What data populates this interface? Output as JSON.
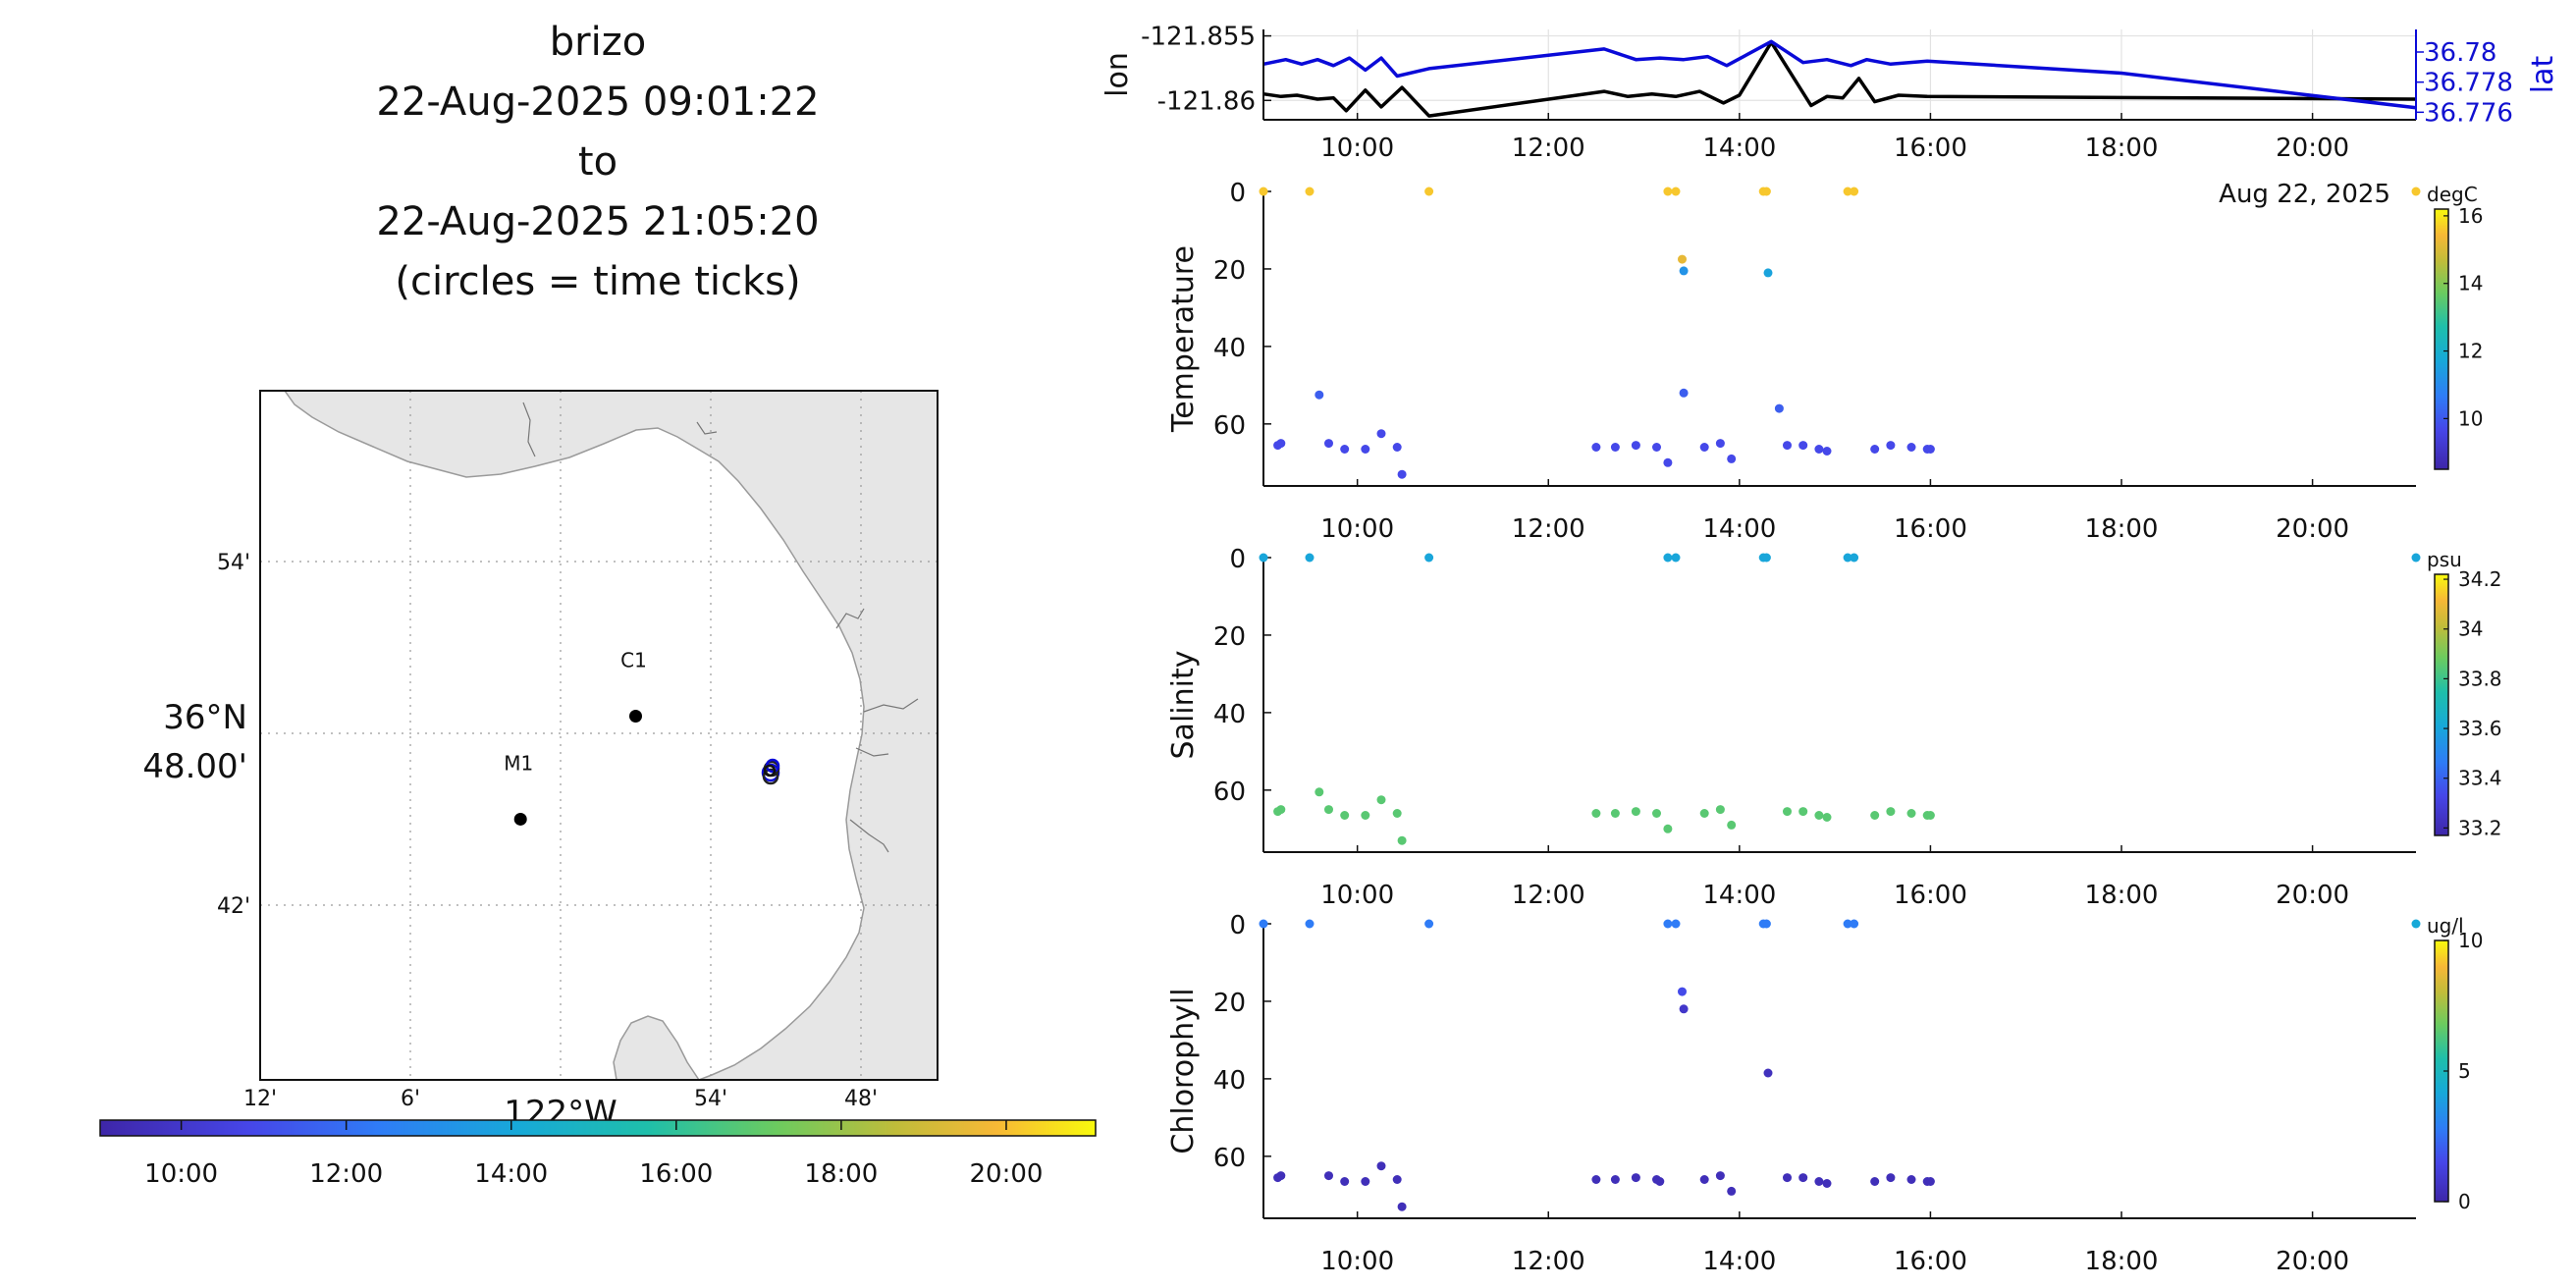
{
  "title": {
    "lines": [
      "brizo",
      "22-Aug-2025 09:01:22",
      "to",
      "22-Aug-2025 21:05:20",
      "(circles = time ticks)"
    ]
  },
  "colors": {
    "lon_line": "#000000",
    "lat_line": "#0a0ad8",
    "land": "#e6e6e6",
    "coast": "#9a9a9a"
  },
  "map": {
    "x_tick_labels": [
      "12'",
      "6'",
      "54'",
      "48'"
    ],
    "x_center_label": "122°W",
    "y_tick_labels": [
      "54'",
      "42'"
    ],
    "y_center_label_top": "36°N",
    "y_center_label_bottom": "48.00'",
    "stations": [
      {
        "name": "M1",
        "lon_min": 1.6,
        "lat_min": 45.0
      },
      {
        "name": "C1",
        "lon_min": 57.0,
        "lat_min": 48.6
      }
    ],
    "track_label": "circles = time ticks"
  },
  "time_colorbar": {
    "tick_labels": [
      "10:00",
      "12:00",
      "14:00",
      "16:00",
      "18:00",
      "20:00"
    ]
  },
  "chart_data": [
    {
      "type": "line",
      "name": "position",
      "xlabel": "",
      "ylabel": "lon",
      "y2label": "lat",
      "x_tick_labels": [
        "10:00",
        "12:00",
        "14:00",
        "16:00",
        "18:00",
        "20:00"
      ],
      "date_label": "Aug 22, 2025",
      "ylim": [
        -121.8615,
        -121.8545
      ],
      "y_ticks": [
        "-121.855",
        "-121.86"
      ],
      "y2lim": [
        36.7755,
        36.7815
      ],
      "y2_ticks": [
        "36.78",
        "36.778",
        "36.776"
      ],
      "grid": true,
      "series": [
        {
          "name": "lon",
          "axis": "left",
          "color": "#000000",
          "x": [
            "09:01",
            "09:12",
            "09:22",
            "09:35",
            "09:45",
            "09:53",
            "10:05",
            "10:15",
            "10:28",
            "10:45",
            "12:35",
            "12:50",
            "13:05",
            "13:20",
            "13:35",
            "13:50",
            "14:00",
            "14:20",
            "14:45",
            "14:55",
            "15:05",
            "15:15",
            "15:25",
            "15:40",
            "15:58",
            "21:05"
          ],
          "y": [
            -121.8595,
            -121.8597,
            -121.8596,
            -121.8599,
            -121.8598,
            -121.8608,
            -121.8592,
            -121.8605,
            -121.859,
            -121.8612,
            -121.8593,
            -121.8597,
            -121.8595,
            -121.8597,
            -121.8593,
            -121.8602,
            -121.8596,
            -121.8555,
            -121.8604,
            -121.8597,
            -121.8598,
            -121.8583,
            -121.8601,
            -121.8596,
            -121.8597,
            -121.8599
          ]
        },
        {
          "name": "lat",
          "axis": "right",
          "color": "#0a0ad8",
          "x": [
            "09:01",
            "09:15",
            "09:25",
            "09:35",
            "09:45",
            "09:55",
            "10:05",
            "10:15",
            "10:25",
            "10:45",
            "12:35",
            "12:55",
            "13:10",
            "13:25",
            "13:40",
            "13:52",
            "14:20",
            "14:40",
            "14:55",
            "15:10",
            "15:20",
            "15:35",
            "15:58",
            "18:00",
            "21:05"
          ],
          "y": [
            36.7792,
            36.7795,
            36.7792,
            36.7795,
            36.7791,
            36.7796,
            36.7788,
            36.7796,
            36.7784,
            36.7789,
            36.7802,
            36.7795,
            36.7796,
            36.7795,
            36.7797,
            36.7791,
            36.7807,
            36.7793,
            36.7795,
            36.7791,
            36.7795,
            36.7792,
            36.7794,
            36.7786,
            36.7763
          ]
        }
      ]
    },
    {
      "type": "scatter",
      "name": "temperature",
      "ylabel": "Temperature",
      "units": "degC",
      "x_tick_labels": [
        "10:00",
        "12:00",
        "14:00",
        "16:00",
        "18:00",
        "20:00"
      ],
      "y_ticks": [
        "0",
        "20",
        "40",
        "60"
      ],
      "ylim": [
        0,
        76
      ],
      "y_reversed": true,
      "colorbar": {
        "range": [
          8.5,
          16.2
        ],
        "ticks": [
          "16",
          "14",
          "12",
          "10"
        ]
      },
      "points": [
        {
          "t": "09:01",
          "d": 0,
          "v": 15.6
        },
        {
          "t": "09:30",
          "d": 0,
          "v": 15.6
        },
        {
          "t": "10:45",
          "d": 0,
          "v": 15.6
        },
        {
          "t": "13:15",
          "d": 0,
          "v": 15.6
        },
        {
          "t": "13:20",
          "d": 0,
          "v": 15.6
        },
        {
          "t": "14:15",
          "d": 0,
          "v": 15.6
        },
        {
          "t": "14:17",
          "d": 0,
          "v": 15.6
        },
        {
          "t": "15:08",
          "d": 0,
          "v": 15.6
        },
        {
          "t": "15:12",
          "d": 0,
          "v": 15.6
        },
        {
          "t": "21:05",
          "d": 0,
          "v": 15.6
        },
        {
          "t": "13:24",
          "d": 17.5,
          "v": 15.2
        },
        {
          "t": "13:25",
          "d": 20.5,
          "v": 11.2
        },
        {
          "t": "14:18",
          "d": 21,
          "v": 11.6
        },
        {
          "t": "09:36",
          "d": 52.5,
          "v": 10.1
        },
        {
          "t": "13:25",
          "d": 52,
          "v": 10.1
        },
        {
          "t": "14:25",
          "d": 56,
          "v": 10.1
        },
        {
          "t": "09:10",
          "d": 65.5,
          "v": 9.7
        },
        {
          "t": "09:12",
          "d": 65,
          "v": 9.7
        },
        {
          "t": "09:42",
          "d": 65,
          "v": 9.7
        },
        {
          "t": "09:52",
          "d": 66.5,
          "v": 9.7
        },
        {
          "t": "10:05",
          "d": 66.5,
          "v": 9.7
        },
        {
          "t": "10:15",
          "d": 62.5,
          "v": 9.7
        },
        {
          "t": "10:25",
          "d": 66,
          "v": 9.7
        },
        {
          "t": "10:28",
          "d": 73,
          "v": 9.7
        },
        {
          "t": "12:30",
          "d": 66,
          "v": 9.7
        },
        {
          "t": "12:42",
          "d": 66,
          "v": 9.7
        },
        {
          "t": "12:55",
          "d": 65.5,
          "v": 9.7
        },
        {
          "t": "13:08",
          "d": 66,
          "v": 9.7
        },
        {
          "t": "13:15",
          "d": 70,
          "v": 9.7
        },
        {
          "t": "13:38",
          "d": 66,
          "v": 9.7
        },
        {
          "t": "13:48",
          "d": 65,
          "v": 9.7
        },
        {
          "t": "13:55",
          "d": 69,
          "v": 9.7
        },
        {
          "t": "14:30",
          "d": 65.5,
          "v": 9.7
        },
        {
          "t": "14:40",
          "d": 65.5,
          "v": 9.7
        },
        {
          "t": "14:50",
          "d": 66.5,
          "v": 9.7
        },
        {
          "t": "14:55",
          "d": 67,
          "v": 9.7
        },
        {
          "t": "15:25",
          "d": 66.5,
          "v": 9.7
        },
        {
          "t": "15:35",
          "d": 65.5,
          "v": 9.7
        },
        {
          "t": "15:48",
          "d": 66,
          "v": 9.7
        },
        {
          "t": "15:58",
          "d": 66.5,
          "v": 9.7
        },
        {
          "t": "16:00",
          "d": 66.5,
          "v": 9.7
        }
      ]
    },
    {
      "type": "scatter",
      "name": "salinity",
      "ylabel": "Salinity",
      "units": "psu",
      "x_tick_labels": [
        "10:00",
        "12:00",
        "14:00",
        "16:00",
        "18:00",
        "20:00"
      ],
      "y_ticks": [
        "0",
        "20",
        "40",
        "60"
      ],
      "ylim": [
        0,
        76
      ],
      "y_reversed": true,
      "colorbar": {
        "range": [
          33.17,
          34.22
        ],
        "ticks": [
          "34.2",
          "34",
          "33.8",
          "33.6",
          "33.4",
          "33.2"
        ]
      },
      "points": [
        {
          "t": "09:01",
          "d": 0,
          "v": 33.6
        },
        {
          "t": "09:30",
          "d": 0,
          "v": 33.6
        },
        {
          "t": "10:45",
          "d": 0,
          "v": 33.6
        },
        {
          "t": "13:15",
          "d": 0,
          "v": 33.6
        },
        {
          "t": "13:20",
          "d": 0,
          "v": 33.6
        },
        {
          "t": "14:15",
          "d": 0,
          "v": 33.6
        },
        {
          "t": "14:17",
          "d": 0,
          "v": 33.6
        },
        {
          "t": "15:08",
          "d": 0,
          "v": 33.6
        },
        {
          "t": "15:12",
          "d": 0,
          "v": 33.6
        },
        {
          "t": "21:05",
          "d": 0,
          "v": 33.6
        },
        {
          "t": "09:10",
          "d": 65.5,
          "v": 33.85
        },
        {
          "t": "09:12",
          "d": 65,
          "v": 33.85
        },
        {
          "t": "09:36",
          "d": 60.5,
          "v": 33.85
        },
        {
          "t": "09:42",
          "d": 65,
          "v": 33.85
        },
        {
          "t": "09:52",
          "d": 66.5,
          "v": 33.85
        },
        {
          "t": "10:05",
          "d": 66.5,
          "v": 33.85
        },
        {
          "t": "10:15",
          "d": 62.5,
          "v": 33.85
        },
        {
          "t": "10:25",
          "d": 66,
          "v": 33.85
        },
        {
          "t": "10:28",
          "d": 73,
          "v": 33.85
        },
        {
          "t": "12:30",
          "d": 66,
          "v": 33.85
        },
        {
          "t": "12:42",
          "d": 66,
          "v": 33.85
        },
        {
          "t": "12:55",
          "d": 65.5,
          "v": 33.85
        },
        {
          "t": "13:08",
          "d": 66,
          "v": 33.85
        },
        {
          "t": "13:15",
          "d": 70,
          "v": 33.85
        },
        {
          "t": "13:38",
          "d": 66,
          "v": 33.85
        },
        {
          "t": "13:48",
          "d": 65,
          "v": 33.85
        },
        {
          "t": "13:55",
          "d": 69,
          "v": 33.85
        },
        {
          "t": "14:30",
          "d": 65.5,
          "v": 33.85
        },
        {
          "t": "14:40",
          "d": 65.5,
          "v": 33.85
        },
        {
          "t": "14:50",
          "d": 66.5,
          "v": 33.85
        },
        {
          "t": "14:55",
          "d": 67,
          "v": 33.85
        },
        {
          "t": "15:25",
          "d": 66.5,
          "v": 33.85
        },
        {
          "t": "15:35",
          "d": 65.5,
          "v": 33.85
        },
        {
          "t": "15:48",
          "d": 66,
          "v": 33.85
        },
        {
          "t": "15:58",
          "d": 66.5,
          "v": 33.85
        },
        {
          "t": "16:00",
          "d": 66.5,
          "v": 33.85
        }
      ]
    },
    {
      "type": "scatter",
      "name": "chlorophyll",
      "ylabel": "Chlorophyll",
      "units": "ug/l",
      "x_tick_labels": [
        "10:00",
        "12:00",
        "14:00",
        "16:00",
        "18:00",
        "20:00"
      ],
      "y_ticks": [
        "0",
        "20",
        "40",
        "60"
      ],
      "ylim": [
        0,
        76
      ],
      "y_reversed": true,
      "colorbar": {
        "range": [
          0,
          10
        ],
        "ticks": [
          "10",
          "5",
          "0"
        ]
      },
      "points": [
        {
          "t": "09:01",
          "d": 0,
          "v": 2.8
        },
        {
          "t": "09:30",
          "d": 0,
          "v": 2.8
        },
        {
          "t": "10:45",
          "d": 0,
          "v": 2.8
        },
        {
          "t": "13:15",
          "d": 0,
          "v": 2.8
        },
        {
          "t": "13:20",
          "d": 0,
          "v": 2.8
        },
        {
          "t": "14:15",
          "d": 0,
          "v": 2.8
        },
        {
          "t": "14:17",
          "d": 0,
          "v": 2.8
        },
        {
          "t": "15:08",
          "d": 0,
          "v": 2.8
        },
        {
          "t": "15:12",
          "d": 0,
          "v": 2.8
        },
        {
          "t": "21:05",
          "d": 0,
          "v": 4.2
        },
        {
          "t": "13:24",
          "d": 17.5,
          "v": 1.6
        },
        {
          "t": "13:25",
          "d": 22,
          "v": 0.8
        },
        {
          "t": "14:18",
          "d": 38.5,
          "v": 0.5
        },
        {
          "t": "09:10",
          "d": 65.5,
          "v": 0.4
        },
        {
          "t": "09:12",
          "d": 65,
          "v": 0.4
        },
        {
          "t": "09:42",
          "d": 65,
          "v": 0.4
        },
        {
          "t": "09:52",
          "d": 66.5,
          "v": 0.4
        },
        {
          "t": "10:05",
          "d": 66.5,
          "v": 0.4
        },
        {
          "t": "10:15",
          "d": 62.5,
          "v": 0.4
        },
        {
          "t": "10:25",
          "d": 66,
          "v": 0.4
        },
        {
          "t": "10:28",
          "d": 73,
          "v": 0.4
        },
        {
          "t": "12:30",
          "d": 66,
          "v": 0.4
        },
        {
          "t": "12:42",
          "d": 66,
          "v": 0.4
        },
        {
          "t": "12:55",
          "d": 65.5,
          "v": 0.4
        },
        {
          "t": "13:08",
          "d": 66,
          "v": 0.4
        },
        {
          "t": "13:10",
          "d": 66.5,
          "v": 0.4
        },
        {
          "t": "13:38",
          "d": 66,
          "v": 0.4
        },
        {
          "t": "13:48",
          "d": 65,
          "v": 0.4
        },
        {
          "t": "13:55",
          "d": 69,
          "v": 0.4
        },
        {
          "t": "14:30",
          "d": 65.5,
          "v": 0.4
        },
        {
          "t": "14:40",
          "d": 65.5,
          "v": 0.4
        },
        {
          "t": "14:50",
          "d": 66.5,
          "v": 0.4
        },
        {
          "t": "14:55",
          "d": 67,
          "v": 0.4
        },
        {
          "t": "15:25",
          "d": 66.5,
          "v": 0.4
        },
        {
          "t": "15:35",
          "d": 65.5,
          "v": 0.4
        },
        {
          "t": "15:48",
          "d": 66,
          "v": 0.4
        },
        {
          "t": "15:58",
          "d": 66.5,
          "v": 0.4
        },
        {
          "t": "16:00",
          "d": 66.5,
          "v": 0.4
        }
      ]
    }
  ]
}
